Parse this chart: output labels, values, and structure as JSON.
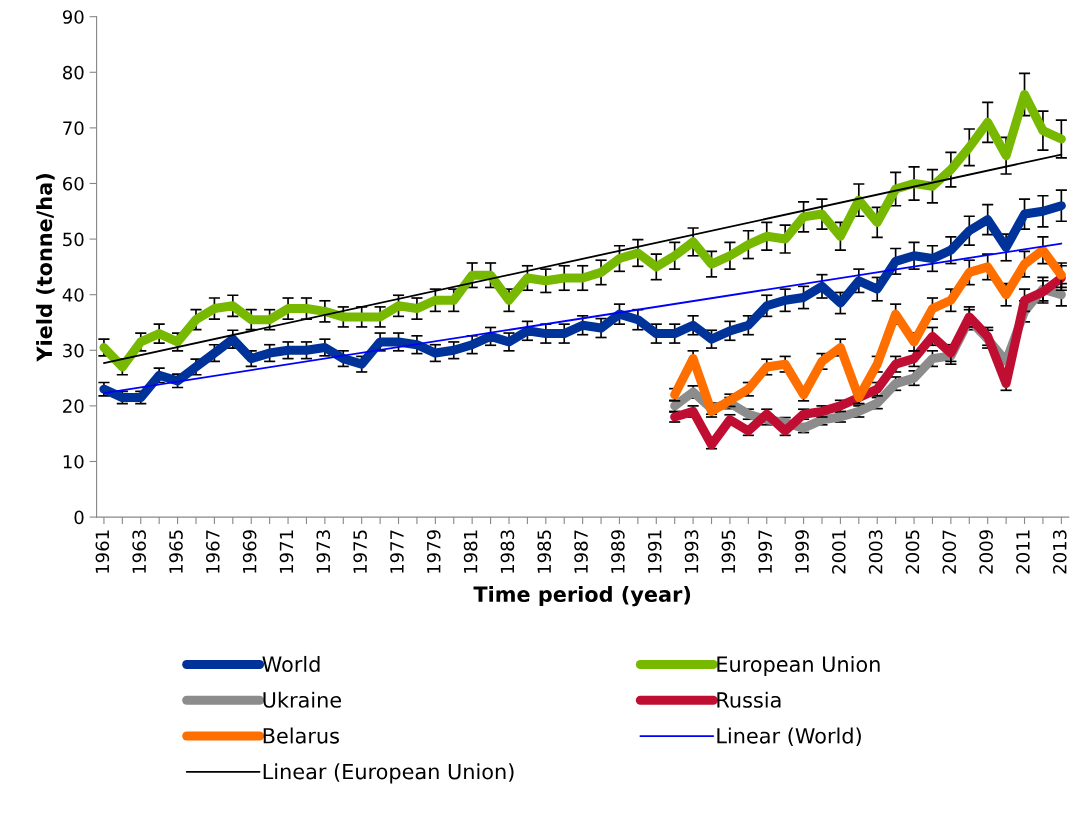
{
  "chart_data": {
    "type": "line",
    "xlabel": "Time period (year)",
    "ylabel": "Yield (tonne/ha)",
    "x": [
      1961,
      1962,
      1963,
      1964,
      1965,
      1966,
      1967,
      1968,
      1969,
      1970,
      1971,
      1972,
      1973,
      1974,
      1975,
      1976,
      1977,
      1978,
      1979,
      1980,
      1981,
      1982,
      1983,
      1984,
      1985,
      1986,
      1987,
      1988,
      1989,
      1990,
      1991,
      1992,
      1993,
      1994,
      1995,
      1996,
      1997,
      1998,
      1999,
      2000,
      2001,
      2002,
      2003,
      2004,
      2005,
      2006,
      2007,
      2008,
      2009,
      2010,
      2011,
      2012,
      2013
    ],
    "series": [
      {
        "name": "World",
        "color": "#003399",
        "values": [
          23,
          21.5,
          21.5,
          25.5,
          24.5,
          27,
          29.5,
          32,
          28.5,
          29.5,
          30,
          30,
          30.5,
          28.5,
          27.5,
          31.5,
          31.5,
          31,
          29.5,
          30,
          31,
          32.5,
          31.5,
          33.5,
          33,
          33,
          34.5,
          34,
          36.5,
          35.5,
          33,
          33,
          34.5,
          32,
          33.5,
          34.5,
          38,
          39,
          39.5,
          41.5,
          38.5,
          42.5,
          41,
          46,
          47,
          46.5,
          48,
          51.5,
          53.5,
          48.5,
          54.5,
          55,
          56
        ],
        "errors": [
          1.2,
          1.1,
          1.1,
          1.3,
          1.2,
          1.4,
          1.5,
          1.6,
          1.4,
          1.5,
          1.5,
          1.5,
          1.5,
          1.4,
          1.4,
          1.6,
          1.6,
          1.6,
          1.5,
          1.5,
          1.6,
          1.6,
          1.6,
          1.7,
          1.7,
          1.7,
          1.7,
          1.7,
          1.8,
          1.8,
          1.7,
          1.7,
          1.7,
          1.6,
          1.7,
          1.7,
          1.9,
          2.0,
          2.0,
          2.1,
          1.9,
          2.1,
          2.1,
          2.3,
          2.4,
          2.3,
          2.4,
          2.6,
          2.7,
          2.4,
          2.7,
          2.8,
          2.8
        ]
      },
      {
        "name": "European Union",
        "color": "#77b800",
        "values": [
          30.5,
          27,
          31.5,
          33,
          31.5,
          35.5,
          37.5,
          38,
          35.5,
          35.5,
          37.5,
          37.5,
          37,
          36,
          36,
          36,
          38,
          37.5,
          39,
          39,
          43.5,
          43.5,
          39,
          43,
          42.5,
          43,
          43,
          44,
          46.5,
          47.5,
          45,
          47,
          49.5,
          45.5,
          47,
          49,
          50.5,
          50,
          54,
          54.5,
          50.5,
          57,
          53,
          59,
          60,
          59.5,
          62.5,
          66.5,
          71,
          65,
          76,
          69.5,
          68
        ],
        "errors": [
          1.5,
          1.4,
          1.6,
          1.7,
          1.6,
          1.8,
          1.9,
          1.9,
          1.8,
          1.8,
          1.9,
          1.9,
          1.9,
          1.8,
          1.8,
          1.8,
          1.9,
          1.9,
          2.0,
          2.0,
          2.2,
          2.2,
          2.0,
          2.2,
          2.1,
          2.2,
          2.2,
          2.2,
          2.3,
          2.4,
          2.3,
          2.4,
          2.5,
          2.3,
          2.4,
          2.5,
          2.5,
          2.5,
          2.7,
          2.7,
          2.5,
          2.9,
          2.7,
          3.0,
          3.0,
          3.0,
          3.1,
          3.3,
          3.6,
          3.3,
          3.8,
          3.5,
          3.4
        ]
      },
      {
        "name": "Ukraine",
        "color": "#8c8c8c",
        "x": [
          1992,
          1993,
          1994,
          1995,
          1996,
          1997,
          1998,
          1999,
          2000,
          2001,
          2002,
          2003,
          2004,
          2005,
          2006,
          2007,
          2008,
          2009,
          2010,
          2011,
          2012,
          2013
        ],
        "values": [
          20,
          22.5,
          19.5,
          20.5,
          18.5,
          17.5,
          17,
          16,
          17.5,
          18,
          19,
          20.5,
          24,
          25,
          28.5,
          29,
          35.5,
          32,
          28,
          37,
          41,
          40
        ],
        "errors": [
          1.0,
          1.1,
          1.0,
          1.0,
          0.9,
          0.9,
          0.9,
          0.8,
          0.9,
          0.9,
          1.0,
          1.0,
          1.2,
          1.3,
          1.4,
          1.5,
          1.8,
          1.6,
          1.4,
          1.9,
          2.1,
          2.0
        ]
      },
      {
        "name": "Russia",
        "color": "#c00d32",
        "x": [
          1992,
          1993,
          1994,
          1995,
          1996,
          1997,
          1998,
          1999,
          2000,
          2001,
          2002,
          2003,
          2004,
          2005,
          2006,
          2007,
          2008,
          2009,
          2010,
          2011,
          2012,
          2013
        ],
        "values": [
          18,
          19,
          13,
          17.5,
          15.5,
          18.5,
          15.5,
          18.5,
          19,
          20,
          21.5,
          23,
          27.5,
          28.5,
          32.5,
          29.5,
          36,
          32.5,
          24,
          39,
          40.5,
          43
        ],
        "errors": [
          0.9,
          1.0,
          0.7,
          0.9,
          0.8,
          0.9,
          0.8,
          0.9,
          1.0,
          1.0,
          1.1,
          1.2,
          1.4,
          1.4,
          1.6,
          1.5,
          1.8,
          1.6,
          1.2,
          2.0,
          2.0,
          2.2
        ]
      },
      {
        "name": "Belarus",
        "color": "#ff6f00",
        "x": [
          1992,
          1993,
          1994,
          1995,
          1996,
          1997,
          1998,
          1999,
          2000,
          2001,
          2002,
          2003,
          2004,
          2005,
          2006,
          2007,
          2008,
          2009,
          2010,
          2011,
          2012,
          2013
        ],
        "values": [
          22,
          28.5,
          19,
          21,
          23,
          27,
          27.5,
          22,
          28,
          30.5,
          21.5,
          27.5,
          36.5,
          31.5,
          37.5,
          39,
          44,
          45,
          40,
          45.5,
          48,
          43.5
        ],
        "errors": [
          1.1,
          1.4,
          1.0,
          1.1,
          1.2,
          1.4,
          1.4,
          1.1,
          1.4,
          1.5,
          1.1,
          1.4,
          1.8,
          1.6,
          1.9,
          2.0,
          2.2,
          2.3,
          2.0,
          2.3,
          2.4,
          2.2
        ]
      },
      {
        "name": "Linear (World)",
        "color": "#0000ff",
        "x": [
          1961,
          2013
        ],
        "values": [
          22.3,
          49.2
        ]
      },
      {
        "name": "Linear (European Union)",
        "color": "#000000",
        "x": [
          1961,
          2013
        ],
        "values": [
          27.7,
          65.2
        ]
      }
    ],
    "xlim": [
      1960.6,
      2013.4
    ],
    "xticks": [
      1961,
      {
        "value": 1962,
        "label": null
      },
      1963,
      {
        "value": 1964,
        "label": null
      },
      1965,
      {
        "value": 1966,
        "label": null
      },
      1967,
      {
        "value": 1968,
        "label": null
      },
      1969,
      {
        "value": 1970,
        "label": null
      },
      1971,
      {
        "value": 1972,
        "label": null
      },
      1973,
      {
        "value": 1974,
        "label": null
      },
      1975,
      {
        "value": 1976,
        "label": null
      },
      1977,
      {
        "value": 1978,
        "label": null
      },
      1979,
      {
        "value": 1980,
        "label": null
      },
      1981,
      {
        "value": 1982,
        "label": null
      },
      1983,
      {
        "value": 1984,
        "label": null
      },
      1985,
      {
        "value": 1986,
        "label": null
      },
      1987,
      {
        "value": 1988,
        "label": null
      },
      1989,
      {
        "value": 1990,
        "label": null
      },
      1991,
      {
        "value": 1992,
        "label": null
      },
      1993,
      {
        "value": 1994,
        "label": null
      },
      1995,
      {
        "value": 1996,
        "label": null
      },
      1997,
      {
        "value": 1998,
        "label": null
      },
      1999,
      {
        "value": 2000,
        "label": null
      },
      2001,
      {
        "value": 2002,
        "label": null
      },
      2003,
      {
        "value": 2004,
        "label": null
      },
      2005,
      {
        "value": 2006,
        "label": null
      },
      2007,
      {
        "value": 2008,
        "label": null
      },
      2009,
      {
        "value": 2010,
        "label": null
      },
      2011,
      {
        "value": 2012,
        "label": null
      },
      2013
    ],
    "ylim": [
      0,
      90
    ],
    "yticks": [
      0,
      10,
      20,
      30,
      40,
      50,
      60,
      70,
      80,
      90
    ],
    "grid": false,
    "legend": "bottom",
    "marker": "none",
    "line_style": "solid"
  }
}
